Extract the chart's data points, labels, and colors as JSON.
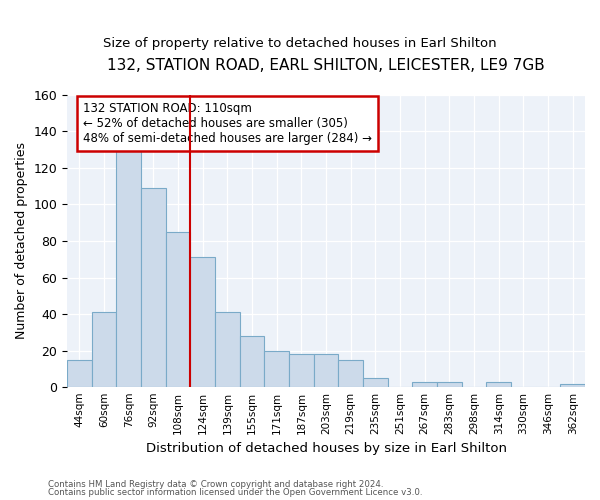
{
  "title": "132, STATION ROAD, EARL SHILTON, LEICESTER, LE9 7GB",
  "subtitle": "Size of property relative to detached houses in Earl Shilton",
  "xlabel": "Distribution of detached houses by size in Earl Shilton",
  "ylabel": "Number of detached properties",
  "bar_color": "#ccdaea",
  "bar_edge_color": "#7aaac8",
  "bins": [
    "44sqm",
    "60sqm",
    "76sqm",
    "92sqm",
    "108sqm",
    "124sqm",
    "139sqm",
    "155sqm",
    "171sqm",
    "187sqm",
    "203sqm",
    "219sqm",
    "235sqm",
    "251sqm",
    "267sqm",
    "283sqm",
    "298sqm",
    "314sqm",
    "330sqm",
    "346sqm",
    "362sqm"
  ],
  "values": [
    15,
    41,
    133,
    109,
    85,
    71,
    41,
    28,
    20,
    18,
    18,
    15,
    5,
    0,
    3,
    3,
    0,
    3,
    0,
    0,
    2
  ],
  "annotation_title": "132 STATION ROAD: 110sqm",
  "annotation_line1": "← 52% of detached houses are smaller (305)",
  "annotation_line2": "48% of semi-detached houses are larger (284) →",
  "vline_x": 4.0,
  "ylim": [
    0,
    160
  ],
  "yticks": [
    0,
    20,
    40,
    60,
    80,
    100,
    120,
    140,
    160
  ],
  "footer1": "Contains HM Land Registry data © Crown copyright and database right 2024.",
  "footer2": "Contains public sector information licensed under the Open Government Licence v3.0.",
  "bg_color": "#edf2f9",
  "annotation_box_color": "#cc0000",
  "vline_color": "#cc0000",
  "title_fontsize": 11,
  "subtitle_fontsize": 9.5
}
